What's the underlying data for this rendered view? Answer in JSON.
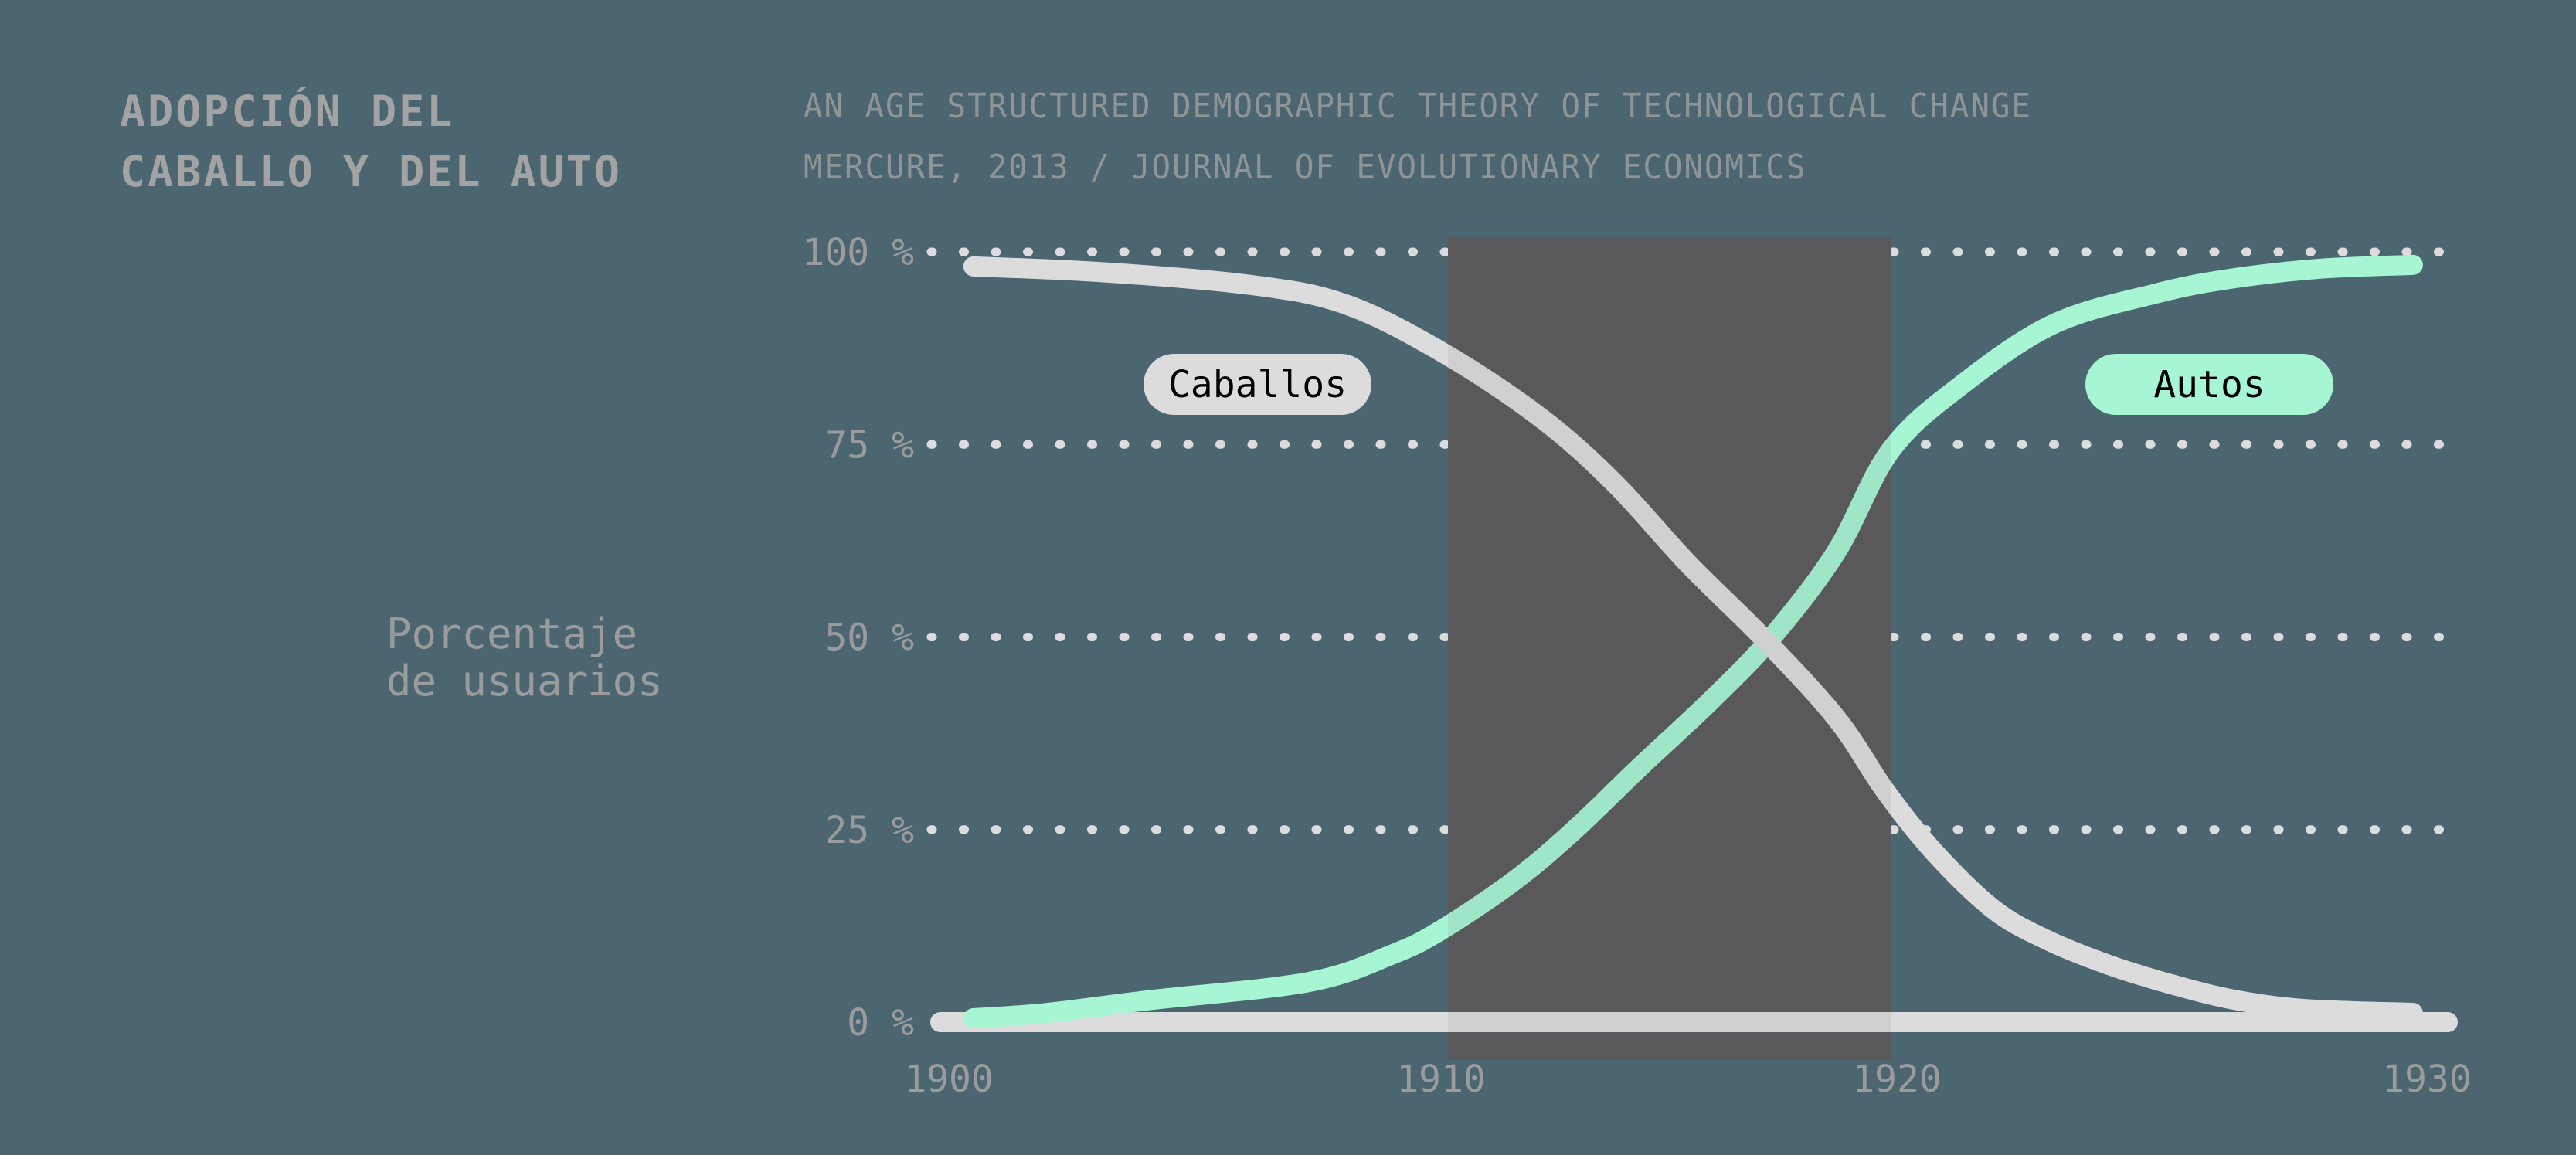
{
  "header": {
    "title_line1": "ADOPCIÓN DEL",
    "title_line2": "CABALLO Y DEL AUTO",
    "subtitle_line1": "AN AGE STRUCTURED DEMOGRAPHIC THEORY OF TECHNOLOGICAL CHANGE",
    "subtitle_line2": "MERCURE, 2013 / JOURNAL OF EVOLUTIONARY ECONOMICS"
  },
  "axis": {
    "ylabel_line1": "Porcentaje",
    "ylabel_line2": "de usuarios",
    "y_ticks": [
      "100 %",
      "75 %",
      "50 %",
      "25 %",
      "0 %"
    ],
    "x_ticks": [
      "1900",
      "1910",
      "1920",
      "1930"
    ]
  },
  "legend": {
    "caballos": "Caballos",
    "autos": "Autos"
  },
  "colors": {
    "background": "#4b6670",
    "caballos": "#dcdcdc",
    "autos": "#a6f5d3",
    "highlight": "#5a5a5c",
    "grid": "#dcdcdc",
    "text": "#9b9b9b"
  },
  "chart_data": {
    "type": "line",
    "title": "ADOPCIÓN DEL CABALLO Y DEL AUTO",
    "subtitle": "AN AGE STRUCTURED DEMOGRAPHIC THEORY OF TECHNOLOGICAL CHANGE / MERCURE, 2013 / JOURNAL OF EVOLUTIONARY ECONOMICS",
    "xlabel": "",
    "ylabel": "Porcentaje de usuarios",
    "xlim": [
      1900,
      1930
    ],
    "ylim": [
      0,
      100
    ],
    "x_ticks": [
      1900,
      1910,
      1920,
      1930
    ],
    "y_ticks": [
      0,
      25,
      50,
      75,
      100
    ],
    "grid": "horizontal dotted",
    "highlight_band": {
      "x_start": 1910,
      "x_end": 1920
    },
    "series": [
      {
        "name": "Caballos",
        "color": "#dcdcdc",
        "points": [
          [
            1900.5,
            98.1
          ],
          [
            1903,
            97.4
          ],
          [
            1906,
            95.8
          ],
          [
            1908,
            93.3
          ],
          [
            1910,
            87.0
          ],
          [
            1912,
            78.5
          ],
          [
            1913.5,
            70.0
          ],
          [
            1915,
            59.5
          ],
          [
            1916.5,
            50.0
          ],
          [
            1918,
            39.5
          ],
          [
            1919,
            30.0
          ],
          [
            1920,
            22.0
          ],
          [
            1921.2,
            14.6
          ],
          [
            1922.3,
            10.6
          ],
          [
            1923.5,
            7.5
          ],
          [
            1924.7,
            5.1
          ],
          [
            1926,
            3.0
          ],
          [
            1927.5,
            1.7
          ],
          [
            1929.7,
            1.2
          ]
        ]
      },
      {
        "name": "Autos",
        "color": "#a6f5d3",
        "points": [
          [
            1900.5,
            0.5
          ],
          [
            1902,
            1.2
          ],
          [
            1904,
            2.8
          ],
          [
            1907.3,
            5.2
          ],
          [
            1909,
            8.8
          ],
          [
            1910,
            12.0
          ],
          [
            1911.5,
            18.5
          ],
          [
            1912.7,
            25.0
          ],
          [
            1914,
            33.0
          ],
          [
            1915.5,
            42.0
          ],
          [
            1916.7,
            50.0
          ],
          [
            1918,
            61.0
          ],
          [
            1919.1,
            74.2
          ],
          [
            1920.5,
            82.5
          ],
          [
            1922.4,
            90.6
          ],
          [
            1924.5,
            94.6
          ],
          [
            1926,
            96.5
          ],
          [
            1927.8,
            97.8
          ],
          [
            1929.7,
            98.3
          ]
        ]
      }
    ],
    "legend": [
      "Caballos",
      "Autos"
    ]
  }
}
